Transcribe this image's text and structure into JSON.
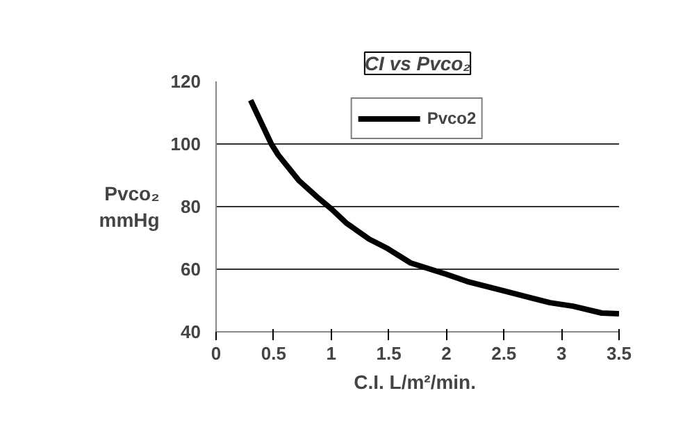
{
  "chart_data": {
    "type": "line",
    "title": "CI vs Pvco₂",
    "xlabel": "C.I.  L/m²/min.",
    "ylabel": "Pvco₂\nmmHg",
    "x": [
      0.3,
      0.48,
      0.54,
      0.72,
      0.88,
      1.0,
      1.13,
      1.33,
      1.49,
      1.69,
      2.0,
      2.18,
      2.5,
      2.9,
      3.1,
      3.35,
      3.5
    ],
    "series": [
      {
        "name": "Pvco2",
        "color": "#000000",
        "values": [
          114,
          100,
          96.5,
          88.3,
          83,
          79.3,
          74.8,
          69.6,
          66.6,
          62,
          58.4,
          56.1,
          53.1,
          49.3,
          48.2,
          46,
          45.8
        ]
      }
    ],
    "xlim": [
      0,
      3.5
    ],
    "xticks": [
      0,
      0.5,
      1,
      1.5,
      2,
      2.5,
      3,
      3.5
    ],
    "ylim": [
      40,
      120
    ],
    "yticks": [
      40,
      60,
      80,
      100,
      120
    ],
    "grid": "y",
    "legend": "top",
    "marker": "none",
    "line_style": "solid"
  }
}
